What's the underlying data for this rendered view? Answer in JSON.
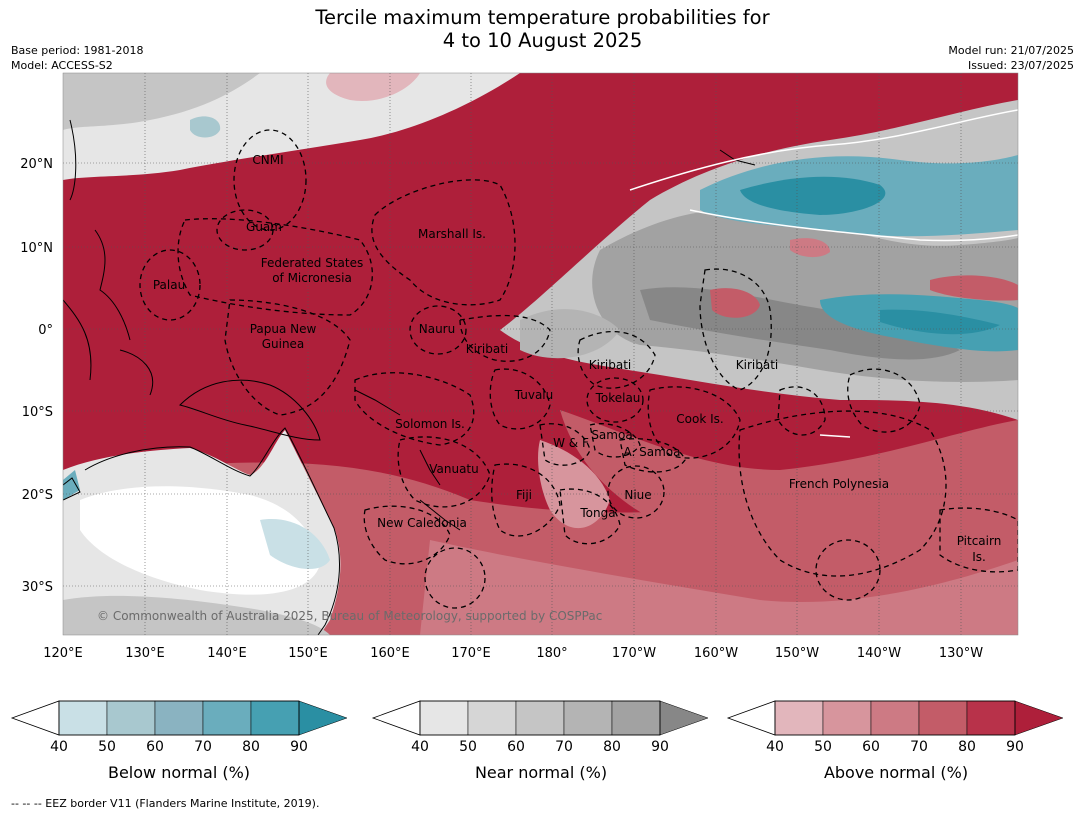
{
  "title": {
    "line1": "Tercile maximum temperature probabilities for",
    "line2": "4 to 10 August 2025"
  },
  "meta": {
    "base_period": "Base period: 1981-2018",
    "model": "Model: ACCESS-S2",
    "model_run": "Model run: 21/07/2025",
    "issued": "Issued: 23/07/2025"
  },
  "map": {
    "lat_labels": [
      "20°N",
      "10°N",
      "0°",
      "10°S",
      "20°S",
      "30°S"
    ],
    "lon_labels": [
      "120°E",
      "130°E",
      "140°E",
      "150°E",
      "160°E",
      "170°E",
      "180°",
      "170°W",
      "160°W",
      "150°W",
      "140°W",
      "130°W"
    ],
    "places": [
      "CNMI",
      "Guam",
      "Marshall Is.",
      "Federated States",
      "of Micronesia",
      "Palau",
      "Papua New",
      "Guinea",
      "Nauru",
      "Kiribati",
      "Kiribati",
      "Kiribati",
      "Tuvalu",
      "Tokelau",
      "Cook Is.",
      "Solomon Is.",
      "W & F",
      "Samoa",
      "A. Samoa",
      "Vanuatu",
      "Fiji",
      "Niue",
      "French Polynesia",
      "Tonga",
      "New Caledonia",
      "Pitcairn",
      "Is."
    ],
    "copyright": "© Commonwealth of Australia 2025, Bureau of Meteorology, supported by COSPPac"
  },
  "colorbars": [
    {
      "label": "Below normal (%)",
      "ticks": [
        "40",
        "50",
        "60",
        "70",
        "80",
        "90"
      ],
      "colors": [
        "#c9e0e6",
        "#a8c8cf",
        "#8ab3c1",
        "#6aadbd",
        "#46a0b2",
        "#2a8fa3"
      ]
    },
    {
      "label": "Near normal (%)",
      "ticks": [
        "40",
        "50",
        "60",
        "70",
        "80",
        "90"
      ],
      "colors": [
        "#e6e6e6",
        "#d6d6d6",
        "#c5c5c5",
        "#b4b4b4",
        "#a2a2a2",
        "#878787"
      ]
    },
    {
      "label": "Above normal (%)",
      "ticks": [
        "40",
        "50",
        "60",
        "70",
        "80",
        "90"
      ],
      "colors": [
        "#e2b6bc",
        "#d7959d",
        "#cd7a84",
        "#c35c68",
        "#b8324a",
        "#ae1f3a"
      ]
    }
  ],
  "footnote": "--  --  -- EEZ border V11 (Flanders Marine Institute, 2019)."
}
